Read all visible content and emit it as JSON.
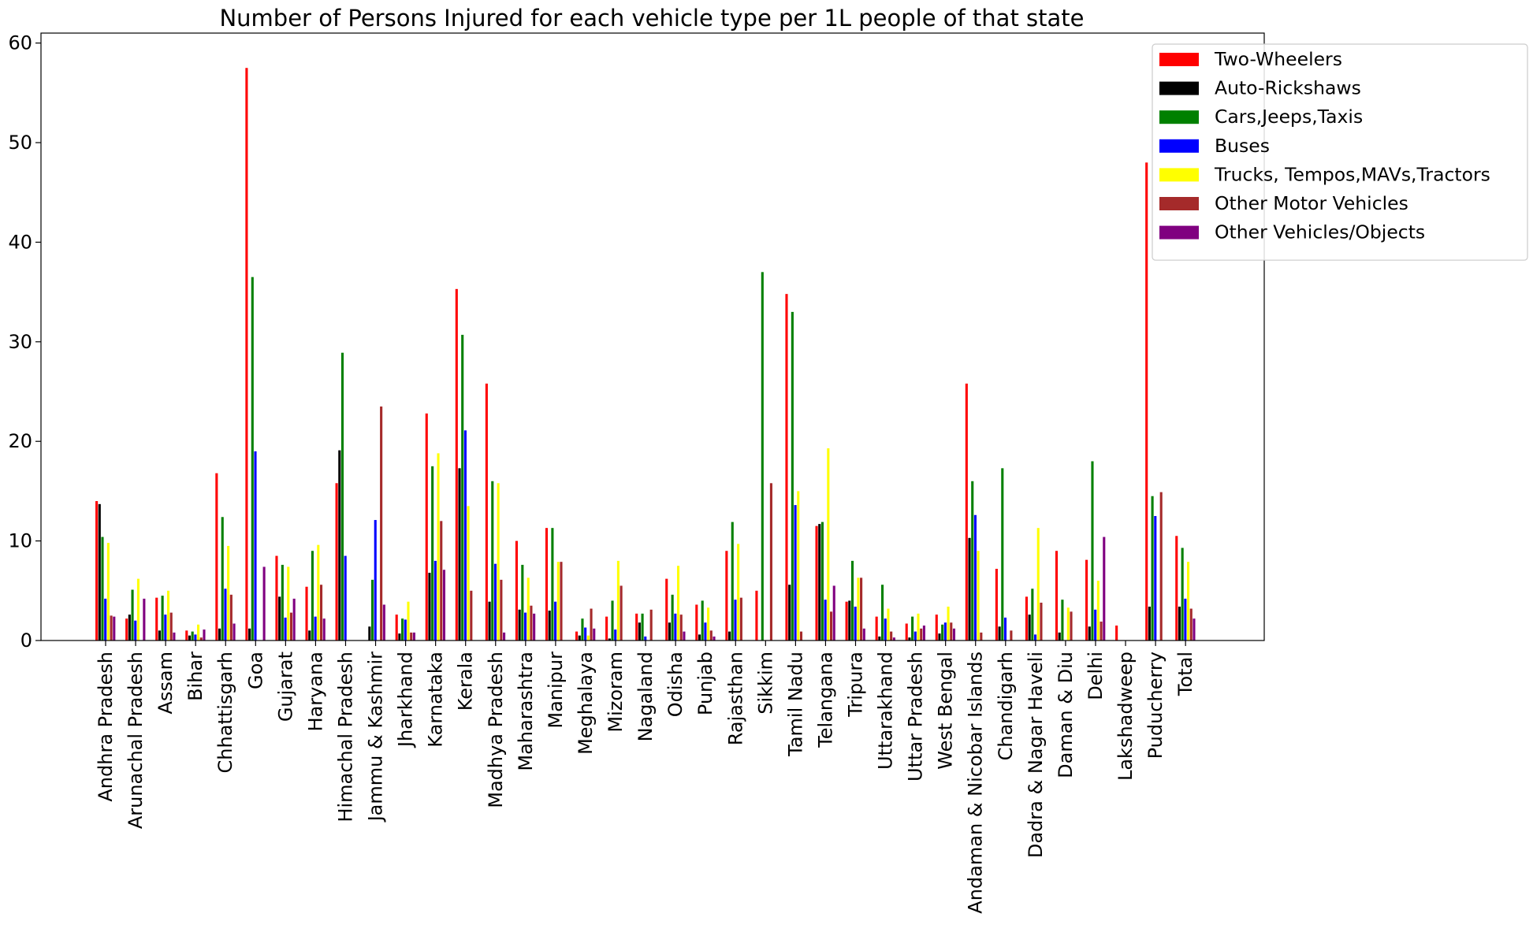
{
  "chart_data": {
    "type": "bar",
    "title": "Number of Persons Injured for each vehicle type per 1L people of that state",
    "xlabel": "",
    "ylabel": "",
    "ylim": [
      0,
      61
    ],
    "yticks": [
      "0",
      "10",
      "20",
      "30",
      "40",
      "50",
      "60"
    ],
    "grid": false,
    "legend_position": "top-right",
    "categories": [
      "Andhra Pradesh",
      "Arunachal Pradesh",
      "Assam",
      "Bihar",
      "Chhattisgarh",
      "Goa",
      "Gujarat",
      "Haryana",
      "Himachal Pradesh",
      "Jammu & Kashmir",
      "Jharkhand",
      "Karnataka",
      "Kerala",
      "Madhya Pradesh",
      "Maharashtra",
      "Manipur",
      "Meghalaya",
      "Mizoram",
      "Nagaland",
      "Odisha",
      "Punjab",
      "Rajasthan",
      "Sikkim",
      "Tamil Nadu",
      "Telangana",
      "Tripura",
      "Uttarakhand",
      "Uttar Pradesh",
      "West Bengal",
      "Andaman & Nicobar Islands",
      "Chandigarh",
      "Dadra & Nagar Haveli",
      "Daman & Diu",
      "Delhi",
      "Lakshadweep",
      "Puducherry",
      "Total"
    ],
    "series": [
      {
        "name": "Two-Wheelers",
        "color": "#ff0000",
        "values": [
          14.0,
          2.2,
          4.3,
          1.0,
          16.8,
          57.5,
          8.5,
          5.4,
          15.8,
          0,
          2.6,
          22.8,
          35.3,
          25.8,
          10.0,
          11.3,
          0.9,
          2.4,
          2.7,
          6.2,
          3.6,
          9.0,
          5.0,
          34.8,
          11.5,
          3.9,
          2.4,
          1.7,
          2.6,
          25.8,
          7.2,
          4.4,
          9.0,
          8.1,
          1.5,
          48.0,
          10.5
        ]
      },
      {
        "name": "Auto-Rickshaws",
        "color": "#000000",
        "values": [
          13.7,
          2.6,
          1.0,
          0.5,
          1.2,
          1.2,
          4.4,
          1.0,
          19.1,
          1.4,
          0.7,
          6.8,
          17.3,
          3.9,
          3.1,
          3.0,
          0.5,
          0.2,
          1.8,
          1.8,
          0.6,
          0.9,
          0,
          5.6,
          11.7,
          4.0,
          0.4,
          0.3,
          0.7,
          10.3,
          1.4,
          2.6,
          0.8,
          1.4,
          0,
          3.4,
          3.4
        ]
      },
      {
        "name": "Cars,Jeeps,Taxis",
        "color": "#008000",
        "values": [
          10.4,
          5.1,
          4.5,
          0.9,
          12.4,
          36.5,
          7.6,
          9.0,
          28.9,
          6.1,
          2.2,
          17.5,
          30.7,
          16.0,
          7.6,
          11.3,
          2.2,
          4.0,
          2.7,
          4.6,
          4.0,
          11.9,
          37.0,
          33.0,
          11.9,
          8.0,
          5.6,
          2.4,
          1.6,
          16.0,
          17.3,
          5.2,
          4.1,
          18.0,
          0,
          14.5,
          9.3
        ]
      },
      {
        "name": "Buses",
        "color": "#0000ff",
        "values": [
          4.2,
          2.0,
          2.6,
          0.6,
          5.2,
          19.0,
          2.3,
          2.4,
          8.5,
          12.1,
          2.1,
          8.0,
          21.1,
          7.7,
          2.8,
          3.9,
          1.3,
          1.1,
          0.4,
          2.7,
          1.8,
          4.1,
          0,
          13.6,
          4.1,
          3.4,
          2.2,
          0.9,
          1.8,
          12.6,
          2.3,
          0.6,
          0,
          3.1,
          0,
          12.5,
          4.2
        ]
      },
      {
        "name": "Trucks, Tempos,MAVs,Tractors",
        "color": "#ffff00",
        "values": [
          9.8,
          6.2,
          5.0,
          1.6,
          9.5,
          0,
          7.4,
          9.6,
          0,
          0,
          3.9,
          18.8,
          13.5,
          15.8,
          6.3,
          7.9,
          0.5,
          8.0,
          0,
          7.5,
          3.3,
          9.7,
          0,
          15.0,
          19.3,
          6.3,
          3.2,
          2.7,
          3.4,
          9.0,
          0,
          11.3,
          3.3,
          6.0,
          0,
          0,
          7.9
        ]
      },
      {
        "name": "Other Motor Vehicles",
        "color": "#a52a2a",
        "values": [
          2.5,
          0,
          2.8,
          0.3,
          4.6,
          0,
          2.8,
          5.6,
          0,
          23.5,
          0.8,
          12.0,
          5.0,
          6.1,
          3.5,
          7.9,
          3.2,
          5.5,
          3.1,
          2.6,
          1.0,
          4.3,
          15.8,
          0.9,
          2.9,
          6.3,
          0.9,
          1.2,
          1.8,
          0.8,
          1.0,
          3.8,
          2.9,
          1.9,
          0,
          14.9,
          3.2
        ]
      },
      {
        "name": "Other Vehicles/Objects",
        "color": "#800080",
        "values": [
          2.4,
          4.2,
          0.8,
          1.1,
          1.7,
          7.4,
          4.2,
          2.2,
          0,
          3.6,
          0.8,
          7.1,
          0,
          0.8,
          2.7,
          0,
          1.2,
          0,
          0,
          0.9,
          0.4,
          0,
          0,
          0,
          5.5,
          1.2,
          0.3,
          1.5,
          1.2,
          0,
          0,
          0,
          0,
          10.4,
          0,
          0,
          2.2
        ]
      }
    ]
  }
}
